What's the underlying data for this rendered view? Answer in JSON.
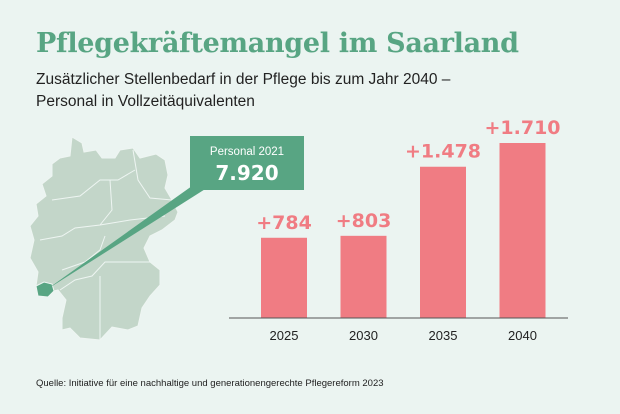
{
  "header": {
    "title": "Pflegekräftemangel im Saarland",
    "subtitle_line1": "Zusätzlicher Stellenbedarf in der Pflege bis zum Jahr 2040 –",
    "subtitle_line2": "Personal in Vollzeitäquivalenten"
  },
  "callout": {
    "label": "Personal 2021",
    "value": "7.920"
  },
  "source": "Quelle: Initiative für eine nachhaltige und generationengerechte Pflegereform 2023",
  "colors": {
    "background": "#ebf4f1",
    "accent": "#58a583",
    "bar": "#f07c83",
    "map": "#c3d6c9"
  },
  "chart_data": {
    "type": "bar",
    "categories": [
      "2025",
      "2030",
      "2035",
      "2040"
    ],
    "values": [
      784,
      803,
      1478,
      1710
    ],
    "data_labels": [
      "+784",
      "+803",
      "+1.478",
      "+1.710"
    ],
    "ylim": [
      0,
      1710
    ],
    "grid": false
  }
}
